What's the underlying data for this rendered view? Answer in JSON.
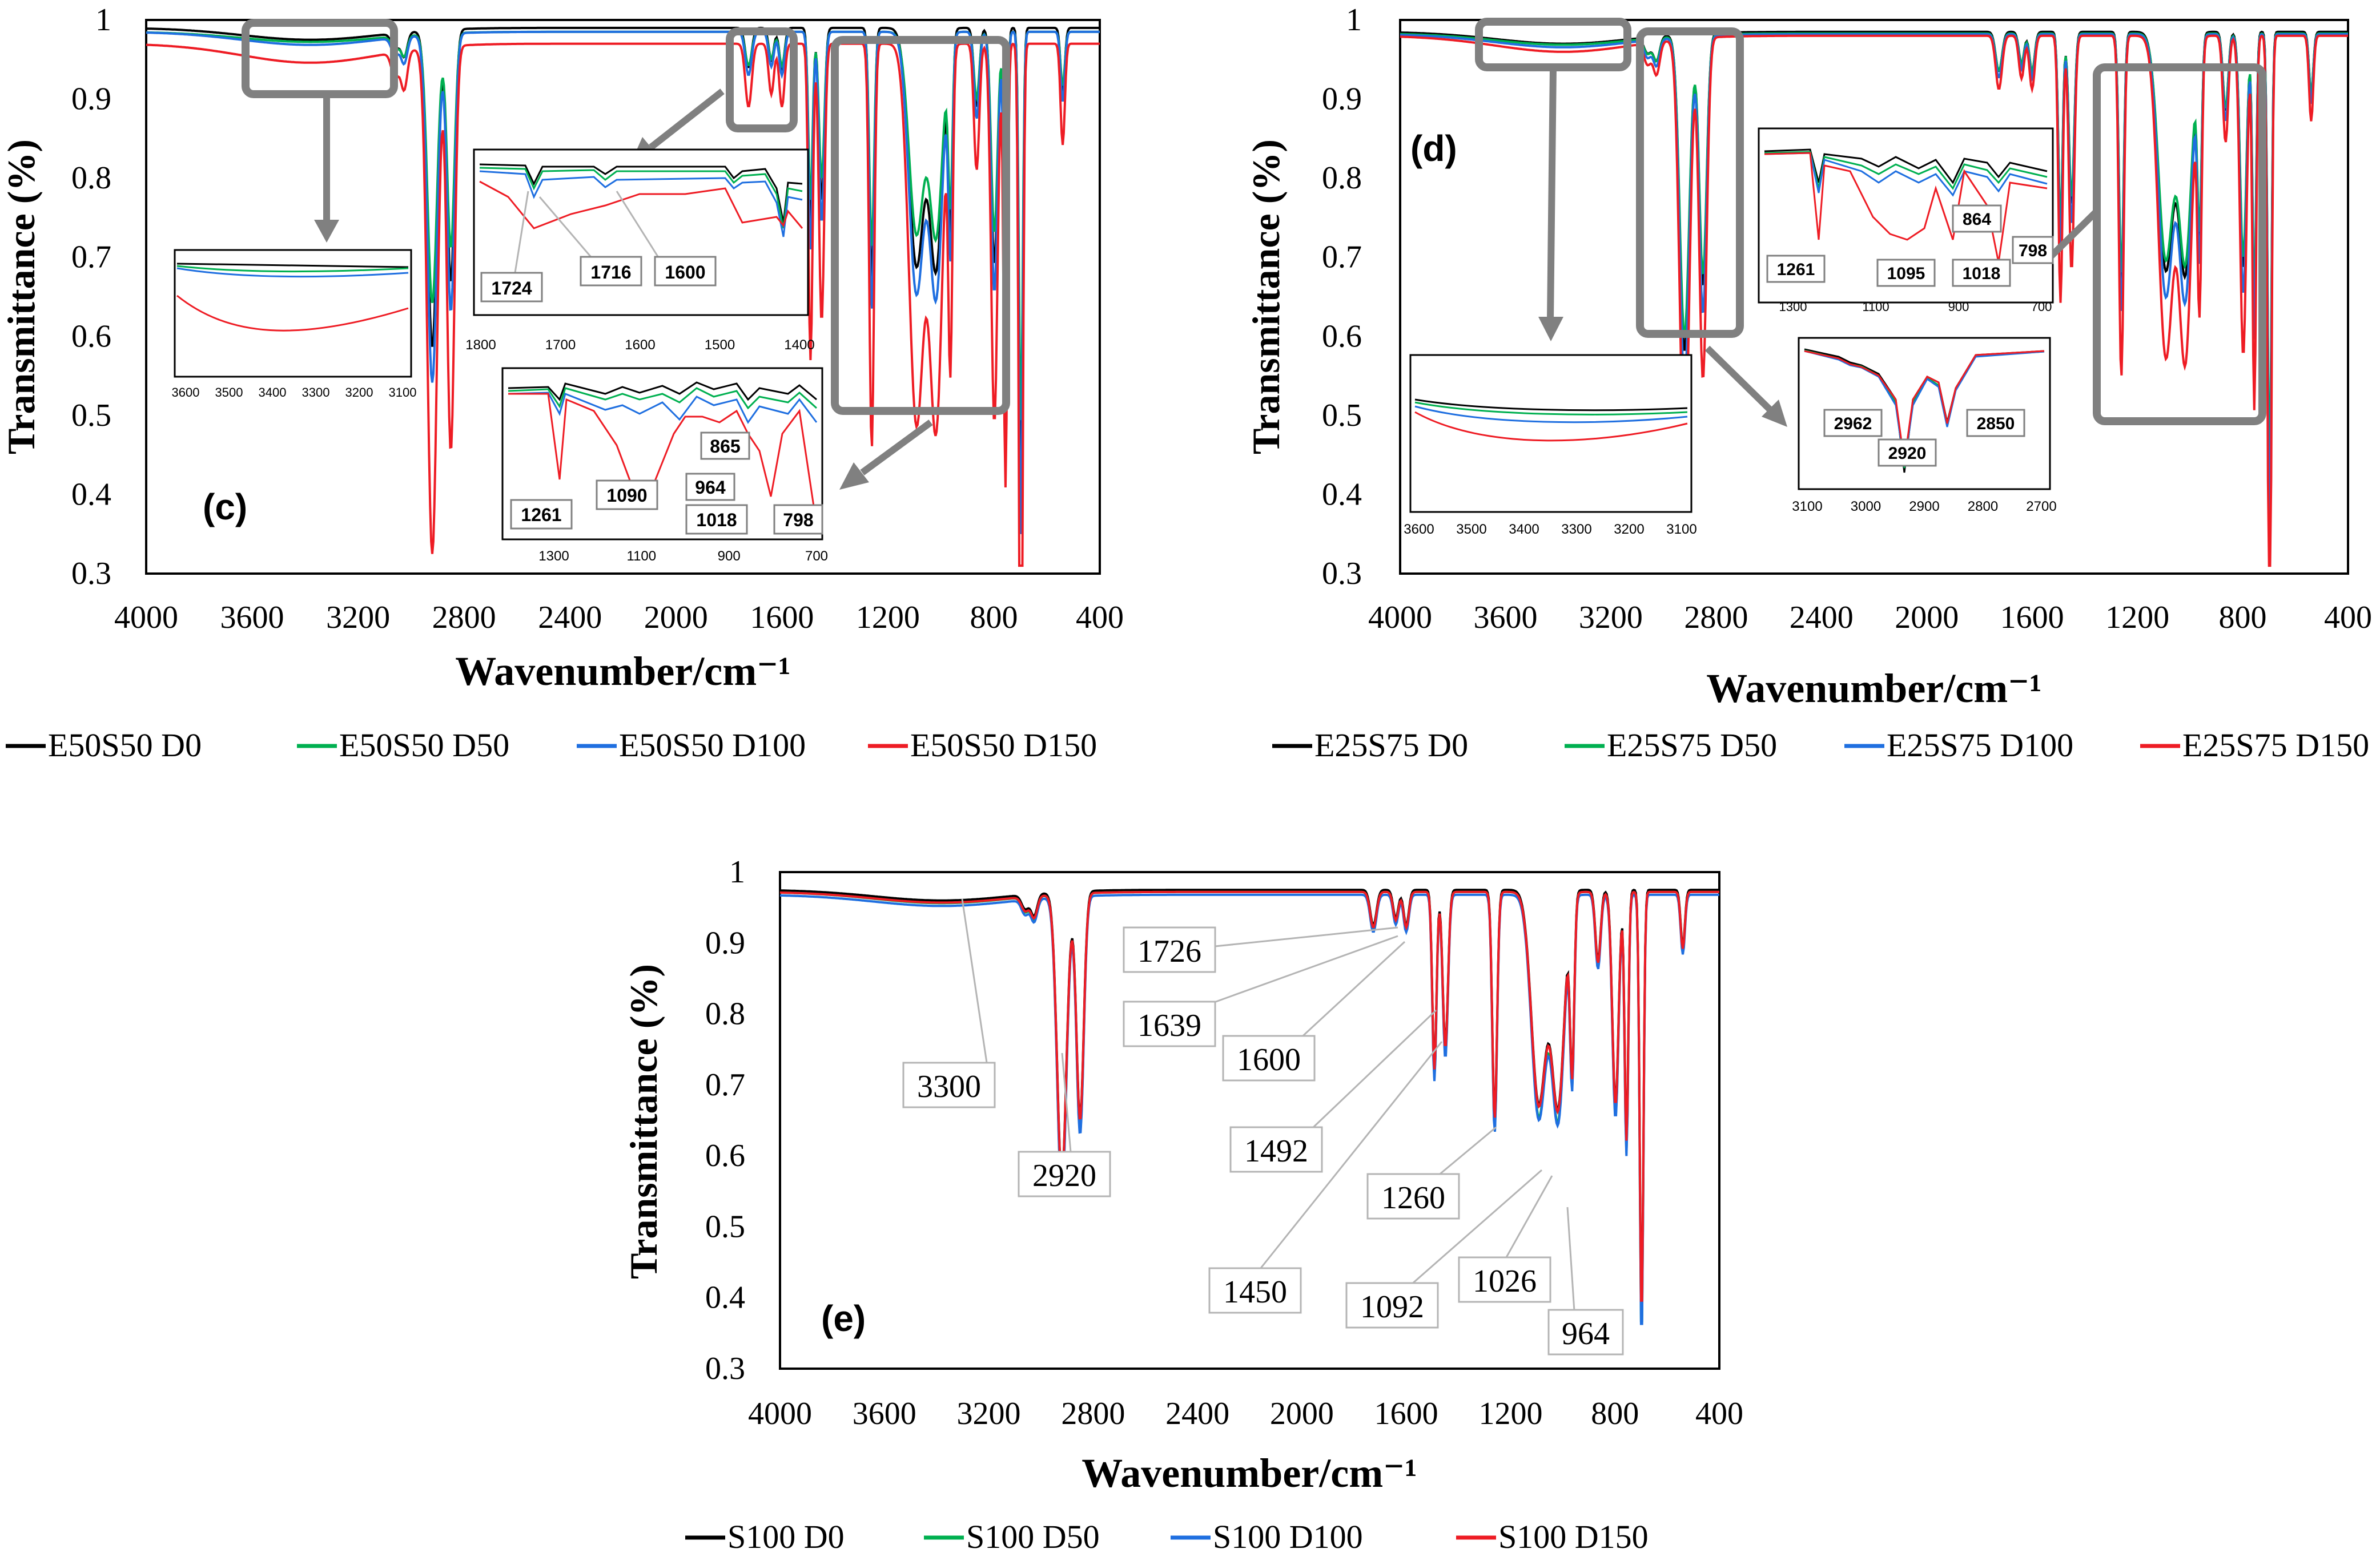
{
  "colors": {
    "D0": "#000000",
    "D50": "#00b050",
    "D100": "#1f6fe0",
    "D150": "#ee1c24",
    "box": "#808080",
    "leader": "#b4b4b4"
  },
  "chart_data": [
    {
      "id": "c",
      "type": "line",
      "panel_letter": "(c)",
      "xlabel": "Wavenumber/cm⁻¹",
      "ylabel": "Transmittance (%)",
      "xlim": [
        4000,
        400
      ],
      "ylim": [
        0.3,
        1.0
      ],
      "xticks": [
        "4000",
        "3600",
        "3200",
        "2800",
        "2400",
        "2000",
        "1600",
        "1200",
        "800",
        "400"
      ],
      "yticks": [
        "0.3",
        "0.4",
        "0.5",
        "0.6",
        "0.7",
        "0.8",
        "0.9",
        "1"
      ],
      "legend": [
        "E50S50 D0",
        "E50S50 D50",
        "E50S50 D100",
        "E50S50 D150"
      ],
      "series": [
        {
          "name": "E50S50 D0",
          "key": "D0",
          "base": 0.99,
          "scale": 1.0
        },
        {
          "name": "E50S50 D50",
          "key": "D50",
          "base": 0.985,
          "scale": 0.85
        },
        {
          "name": "E50S50 D100",
          "key": "D100",
          "base": 0.985,
          "scale": 1.1
        },
        {
          "name": "E50S50 D150",
          "key": "D150",
          "base": 0.97,
          "scale": 1.6
        }
      ],
      "insets": [
        {
          "xticks": [
            "3600",
            "3500",
            "3400",
            "3300",
            "3200",
            "3100"
          ],
          "labels": []
        },
        {
          "xticks": [
            "1800",
            "1700",
            "1600",
            "1500",
            "1400"
          ],
          "labels": [
            "1724",
            "1716",
            "1600"
          ]
        },
        {
          "xticks": [
            "1300",
            "1100",
            "900",
            "700"
          ],
          "labels": [
            "1261",
            "1090",
            "964",
            "865",
            "1018",
            "798"
          ]
        }
      ]
    },
    {
      "id": "d",
      "type": "line",
      "panel_letter": "(d)",
      "xlabel": "Wavenumber/cm⁻¹",
      "ylabel": "Transmittance (%)",
      "xlim": [
        4000,
        400
      ],
      "ylim": [
        0.3,
        1.0
      ],
      "xticks": [
        "4000",
        "3600",
        "3200",
        "2800",
        "2400",
        "2000",
        "1600",
        "1200",
        "800",
        "400"
      ],
      "yticks": [
        "0.3",
        "0.4",
        "0.5",
        "0.6",
        "0.7",
        "0.8",
        "0.9",
        "1"
      ],
      "legend": [
        "E25S75 D0",
        "E25S75 D50",
        "E25S75 D100",
        "E25S75 D150"
      ],
      "series": [
        {
          "name": "E25S75 D0",
          "key": "D0",
          "base": 0.985,
          "scale": 1.0
        },
        {
          "name": "E25S75 D50",
          "key": "D50",
          "base": 0.983,
          "scale": 0.95
        },
        {
          "name": "E25S75 D100",
          "key": "D100",
          "base": 0.982,
          "scale": 1.1
        },
        {
          "name": "E25S75 D150",
          "key": "D150",
          "base": 0.98,
          "scale": 1.35
        }
      ],
      "insets": [
        {
          "xticks": [
            "3600",
            "3500",
            "3400",
            "3300",
            "3200",
            "3100"
          ],
          "labels": []
        },
        {
          "xticks": [
            "1300",
            "1100",
            "900",
            "700"
          ],
          "labels": [
            "1261",
            "1095",
            "1018",
            "864",
            "798"
          ]
        },
        {
          "xticks": [
            "3100",
            "3000",
            "2900",
            "2800",
            "2700"
          ],
          "labels": [
            "2962",
            "2920",
            "2850"
          ]
        }
      ]
    },
    {
      "id": "e",
      "type": "line",
      "panel_letter": "(e)",
      "xlabel": "Wavenumber/cm⁻¹",
      "ylabel": "Transmittance (%)",
      "xlim": [
        4000,
        400
      ],
      "ylim": [
        0.3,
        1.0
      ],
      "xticks": [
        "4000",
        "3600",
        "3200",
        "2800",
        "2400",
        "2000",
        "1600",
        "1200",
        "800",
        "400"
      ],
      "yticks": [
        "0.3",
        "0.4",
        "0.5",
        "0.6",
        "0.7",
        "0.8",
        "0.9",
        "1"
      ],
      "legend": [
        "S100 D0",
        "S100 D50",
        "S100 D100",
        "S100 D150"
      ],
      "series": [
        {
          "name": "S100 D0",
          "key": "D0",
          "base": 0.975,
          "scale": 1.0
        },
        {
          "name": "S100 D50",
          "key": "D50",
          "base": 0.972,
          "scale": 1.05
        },
        {
          "name": "S100 D100",
          "key": "D100",
          "base": 0.968,
          "scale": 1.05
        },
        {
          "name": "S100 D150",
          "key": "D150",
          "base": 0.972,
          "scale": 1.0
        }
      ],
      "annotations": [
        "3300",
        "2920",
        "1726",
        "1639",
        "1600",
        "1492",
        "1450",
        "1260",
        "1092",
        "1026",
        "964"
      ]
    }
  ]
}
